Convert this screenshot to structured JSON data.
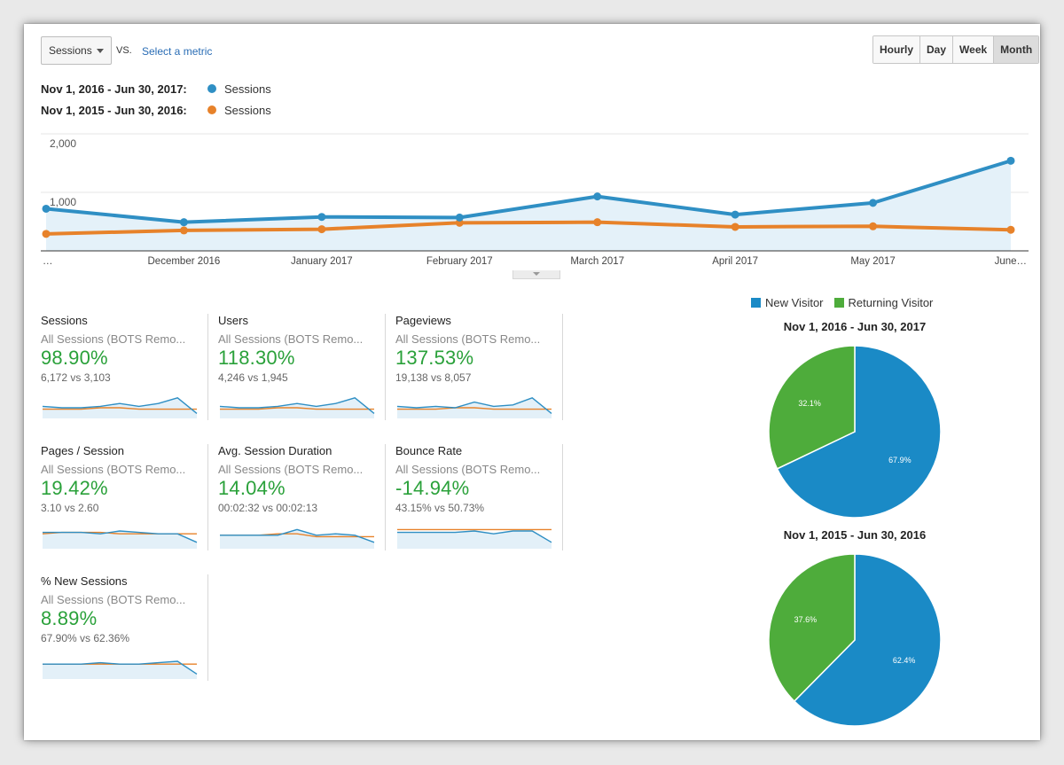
{
  "toolbar": {
    "metric_value": "Sessions",
    "vs_label": "VS.",
    "select_metric": "Select a metric",
    "granularity": [
      "Hourly",
      "Day",
      "Week",
      "Month"
    ],
    "granularity_active": "Month"
  },
  "comparison": [
    {
      "range": "Nov 1, 2016 - Jun 30, 2017:",
      "series": "Sessions",
      "color": "#2f8fc4"
    },
    {
      "range": "Nov 1, 2015 - Jun 30, 2016:",
      "series": "Sessions",
      "color": "#e7822a"
    }
  ],
  "chart_data": {
    "type": "line",
    "x": [
      "…",
      "December 2016",
      "January 2017",
      "February 2017",
      "March 2017",
      "April 2017",
      "May 2017",
      "June…"
    ],
    "ylim": [
      0,
      2000
    ],
    "yticks": [
      "2,000",
      "1,000"
    ],
    "grid": true,
    "series": [
      {
        "name": "Sessions",
        "range": "Nov 1, 2016 - Jun 30, 2017",
        "color": "#2f8fc4",
        "values": [
          720,
          490,
          580,
          570,
          930,
          620,
          820,
          1540
        ],
        "area": true
      },
      {
        "name": "Sessions",
        "range": "Nov 1, 2015 - Jun 30, 2016",
        "color": "#e7822a",
        "values": [
          290,
          350,
          370,
          480,
          490,
          410,
          420,
          360
        ]
      }
    ]
  },
  "scorecards": [
    {
      "title": "Sessions",
      "segment": "All Sessions (BOTS Remo...",
      "change": "98.90%",
      "compare": "6,172 vs 3,103",
      "spark_cur": [
        6,
        5,
        5,
        6,
        8,
        6,
        8,
        12,
        1
      ],
      "spark_prev": [
        4,
        4,
        4,
        5,
        5,
        4,
        4,
        4,
        4
      ]
    },
    {
      "title": "Users",
      "segment": "All Sessions (BOTS Remo...",
      "change": "118.30%",
      "compare": "4,246 vs 1,945",
      "spark_cur": [
        6,
        5,
        5,
        6,
        8,
        6,
        8,
        12,
        1
      ],
      "spark_prev": [
        4,
        4,
        4,
        5,
        5,
        4,
        4,
        4,
        4
      ]
    },
    {
      "title": "Pageviews",
      "segment": "All Sessions (BOTS Remo...",
      "change": "137.53%",
      "compare": "19,138 vs 8,057",
      "spark_cur": [
        6,
        5,
        6,
        5,
        9,
        6,
        7,
        12,
        1
      ],
      "spark_prev": [
        4,
        4,
        4,
        5,
        5,
        4,
        4,
        4,
        4
      ]
    },
    {
      "title": "Pages / Session",
      "segment": "All Sessions (BOTS Remo...",
      "change": "19.42%",
      "compare": "3.10 vs 2.60",
      "spark_cur": [
        9,
        9,
        9,
        8,
        10,
        9,
        8,
        8,
        2
      ],
      "spark_prev": [
        8,
        9,
        9,
        9,
        8,
        8,
        8,
        8,
        8
      ]
    },
    {
      "title": "Avg. Session Duration",
      "segment": "All Sessions (BOTS Remo...",
      "change": "14.04%",
      "compare": "00:02:32 vs 00:02:13",
      "spark_cur": [
        7,
        7,
        7,
        7,
        11,
        7,
        8,
        7,
        2
      ],
      "spark_prev": [
        7,
        7,
        7,
        8,
        8,
        6,
        6,
        6,
        6
      ]
    },
    {
      "title": "Bounce Rate",
      "segment": "All Sessions (BOTS Remo...",
      "change": "-14.94%",
      "compare": "43.15% vs 50.73%",
      "spark_cur": [
        9,
        9,
        9,
        9,
        10,
        8,
        10,
        10,
        2
      ],
      "spark_prev": [
        11,
        11,
        11,
        11,
        11,
        11,
        11,
        11,
        11
      ]
    },
    {
      "title": "% New Sessions",
      "segment": "All Sessions (BOTS Remo...",
      "change": "8.89%",
      "compare": "67.90% vs 62.36%",
      "spark_cur": [
        8,
        8,
        8,
        9,
        8,
        8,
        9,
        10,
        1
      ],
      "spark_prev": [
        8,
        8,
        8,
        8,
        8,
        8,
        8,
        8,
        8
      ]
    }
  ],
  "visitor_pies": {
    "legend": [
      {
        "label": "New Visitor",
        "color": "#1a8ac6"
      },
      {
        "label": "Returning Visitor",
        "color": "#4eac3b"
      }
    ],
    "charts": [
      {
        "title": "Nov 1, 2016 - Jun 30, 2017",
        "type": "pie",
        "slices": [
          {
            "label": "New Visitor",
            "value": 67.9,
            "text": "67.9%"
          },
          {
            "label": "Returning Visitor",
            "value": 32.1,
            "text": "32.1%"
          }
        ]
      },
      {
        "title": "Nov 1, 2015 - Jun 30, 2016",
        "type": "pie",
        "slices": [
          {
            "label": "New Visitor",
            "value": 62.4,
            "text": "62.4%"
          },
          {
            "label": "Returning Visitor",
            "value": 37.6,
            "text": "37.6%"
          }
        ]
      }
    ]
  }
}
